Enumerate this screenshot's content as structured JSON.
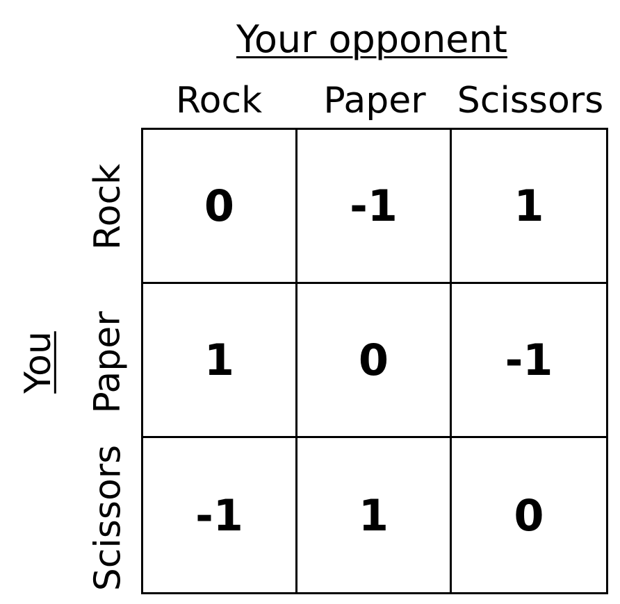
{
  "header": {
    "opponent_label": "Your opponent",
    "you_label": "You"
  },
  "columns": [
    "Rock",
    "Paper",
    "Scissors"
  ],
  "rows": [
    "Rock",
    "Paper",
    "Scissors"
  ],
  "matrix": [
    [
      "0",
      "-1",
      "1"
    ],
    [
      "1",
      "0",
      "-1"
    ],
    [
      "-1",
      "1",
      "0"
    ]
  ]
}
